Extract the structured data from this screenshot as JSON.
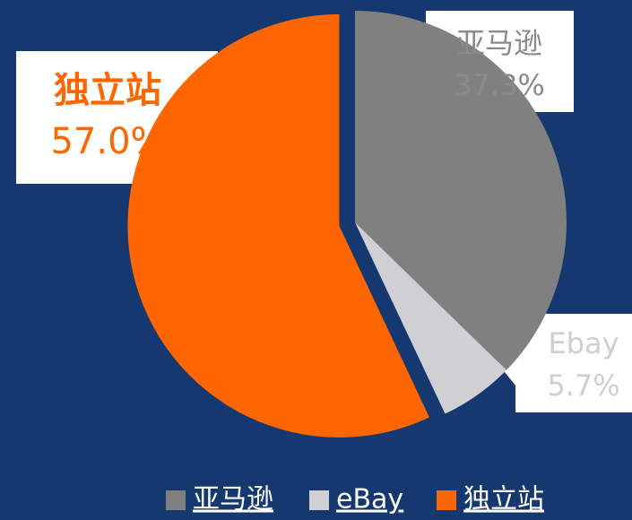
{
  "chart_data": {
    "type": "pie",
    "series": [
      {
        "name": "亚马逊",
        "label": "亚马逊",
        "color": "#808080",
        "values": [
          37.3
        ],
        "value_labels": [
          "37.3%"
        ]
      },
      {
        "name": "eBay",
        "label": "Ebay",
        "color": "#d0d0d4",
        "values": [
          5.7
        ],
        "value_labels": [
          "5.7%"
        ]
      },
      {
        "name": "独立站",
        "label": "独立站",
        "color": "#ff6600",
        "values": [
          57.0
        ],
        "value_labels": [
          "57.0%"
        ]
      }
    ],
    "legend": "bottom"
  }
}
